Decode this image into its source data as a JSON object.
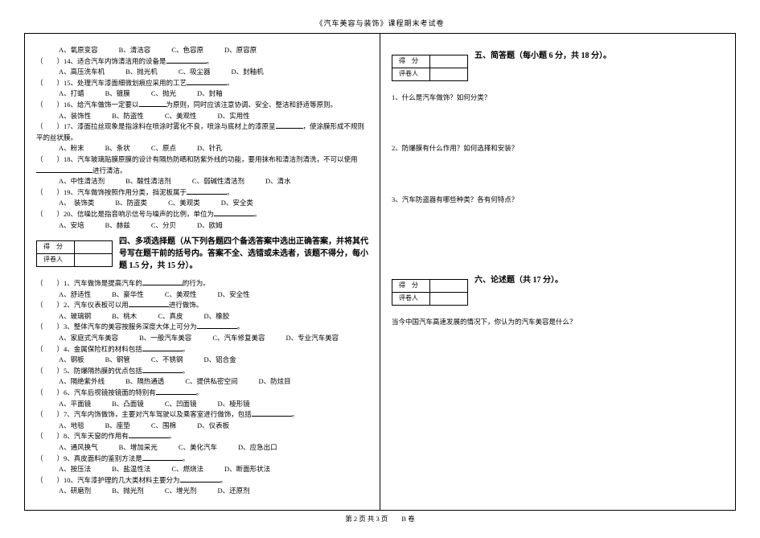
{
  "header": "《汽车美容与装饰》课程期末考试卷",
  "footer": "第 2 页 共 3 页　　B 卷",
  "score": {
    "row1": "得　分",
    "row2": "评卷人"
  },
  "left": {
    "q13opts": [
      "A、氧原变容",
      "B、清洁容",
      "C、色容原",
      "D、原容原"
    ],
    "q14": "（　　）14、适合汽车内饰清洁用的设备是",
    "q14opts": [
      "A、高压洗车机",
      "B、抛光机",
      "C、吸尘器",
      "D、封釉机"
    ],
    "q15": "（　　）15、处理汽车漆面细微划痕应采用的工艺",
    "q15opts": [
      "A、打蜡",
      "B、镀膜",
      "C、抛光",
      "D、封釉"
    ],
    "q16": "（　　）16、给汽车做饰一定要以",
    "q16b": "为原则，同时应该注意协调、安全、整洁和舒适等原则。",
    "q16opts": [
      "A、装饰性",
      "B、防盗性",
      "C、美观性",
      "D、实用性"
    ],
    "q17": "（　　）17、漆面拉丝现象是指涂料在喷涂时雾化不良，喷涂与底材上的漆原呈",
    "q17b": "，使涂膜形成不规则平的丝状膜。",
    "q17opts": [
      "A、粉末",
      "B、条状",
      "C、原点",
      "D、针孔"
    ],
    "q18": "（　　）18、汽车玻璃贴膜原膜的设计有隔热防晒和防紫外线的功能，要用抹布和清洁剂清洗，不可以使用",
    "q18b": "进行清洁。",
    "q18opts": [
      "A、中性清洁剂",
      "B、酸性清洁剂",
      "C、弱碱性清洁剂",
      "D、清水"
    ],
    "q19": "（　　）19、汽车做饰按照作用分类，挡泥板属于",
    "q19opts": [
      "A、　装饰类",
      "B、防盗类",
      "C、美观类",
      "D、安全类"
    ],
    "q20": "（　　）20、信噪比是指音响示信号与噪声的比例，单位为",
    "q20opts": [
      "A、安培",
      "B、赫兹",
      "C、分贝",
      "D、欧姆"
    ],
    "sec4title": "四、多项选择题（从下列各题四个备选答案中选出正确答案，并将其代号写在题干前的括号内。答案不全、选错或未选者，该题不得分，每小题 1.5 分，共 15 分）。",
    "mq1": "（　　）1、汽车做饰是提高汽车的",
    "mq1b": "的行为。",
    "mq1opts": [
      "A、舒适性",
      "B、豪华性",
      "C、美观性",
      "D、安全性"
    ],
    "mq2": "（　　）2、汽车仪表板可以用",
    "mq2b": "进行做饰。",
    "mq2opts": [
      "A、玻璃钢",
      "B、桃木",
      "C、真皮",
      "D、橡胶"
    ],
    "mq3": "（　　）3、整体汽车的美容按服务深度大体上可分为",
    "mq3opts": [
      "A、家庭式汽车美容",
      "B、一般汽车美容",
      "C、汽车修复美容",
      "D、专业汽车美容"
    ],
    "mq4": "（　　）4、金属保险杠的材料包括",
    "mq4opts": [
      "A、钢板",
      "B、钢管",
      "C、不锈钢",
      "D、铝合金"
    ],
    "mq5": "（　　）5、防爆隔热膜的优点包括",
    "mq5opts": [
      "A、隔绝紫外线",
      "B、隔热通透",
      "C、提供私密空间",
      "D、防炫目"
    ],
    "mq6": "（　　）6、汽车后视镜按镜面的特别有",
    "mq6opts": [
      "A、平面镜",
      "B、凸面镜",
      "C、凹面镜",
      "D、棱形镜"
    ],
    "mq7": "（　　）7、汽车内饰做饰，主要对汽车驾驶以及乘客室进行做饰，包括",
    "mq7opts": [
      "A、地毯",
      "B、座垫",
      "C、围棉",
      "D、仪表板"
    ],
    "mq8": "（　　）8、汽车天窗的作用有",
    "mq8opts": [
      "A、通风换气",
      "B、增加采光",
      "C、美化汽车",
      "D、应急出口"
    ],
    "mq9": "（　　）9、真皮面料的鉴别方法是",
    "mq9opts": [
      "A、按压法",
      "B、盐温性法",
      "C、燃烧法",
      "D、断面形状法"
    ],
    "mq10": "（　　）10、汽车漆护理的几大类材料主要分为",
    "mq10opts": [
      "A、研磨剂",
      "B、抛光剂",
      "C、增光剂",
      "D、还原剂"
    ]
  },
  "right": {
    "sec5title": "五、简答题（每小题 6 分，共 18 分）。",
    "sq1": "1、什么是汽车做饰？如何分类？",
    "sq2": "2、防爆膜有什么作用？如何选择和安装？",
    "sq3": "3、汽车防盗器有哪些种类？各有何特点？",
    "sec6title": "六、论述题（共 17 分）。",
    "eq1": "当今中国汽车高速发展的情况下，你认为的汽车美容是什么？"
  }
}
